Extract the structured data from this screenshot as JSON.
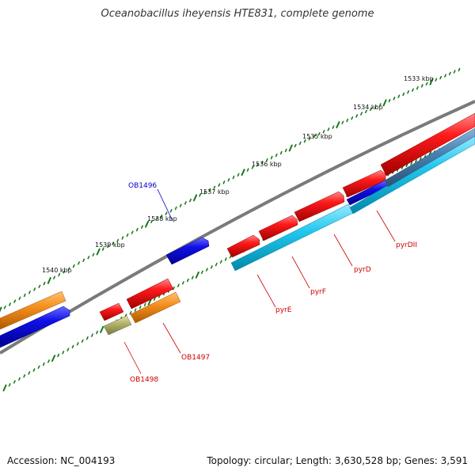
{
  "title": "Oceanobacillus iheyensis HTE831, complete genome",
  "footer": {
    "accession": "Accession: NC_004193",
    "summary": "Topology: circular; Length: 3,630,528 bp; Genes: 3,591"
  },
  "colors": {
    "backbone": "#7a7a7a",
    "tick": "#1a7a1a",
    "red_gene": "#e8141c",
    "blue_gene": "#1414e0",
    "orange_gene": "#f5901e",
    "cyan_gene": "#22c8ee",
    "steel_gene": "#4a84b4",
    "olive_gene": "#b4b46e",
    "label_red": "#cc0000",
    "label_blue": "#0000cc"
  },
  "scale_labels": [
    "1533 kbp",
    "1534 kbp",
    "1535 kbp",
    "1536 kbp",
    "1537 kbp",
    "1538 kbp",
    "1539 kbp",
    "1540 kbp"
  ],
  "gene_labels": {
    "ob1496": "OB1496",
    "ob1497": "OB1497",
    "ob1498": "OB1498",
    "pyrE": "pyrE",
    "pyrF": "pyrF",
    "pyrD": "pyrD",
    "pyrDII": "pyrDII"
  }
}
